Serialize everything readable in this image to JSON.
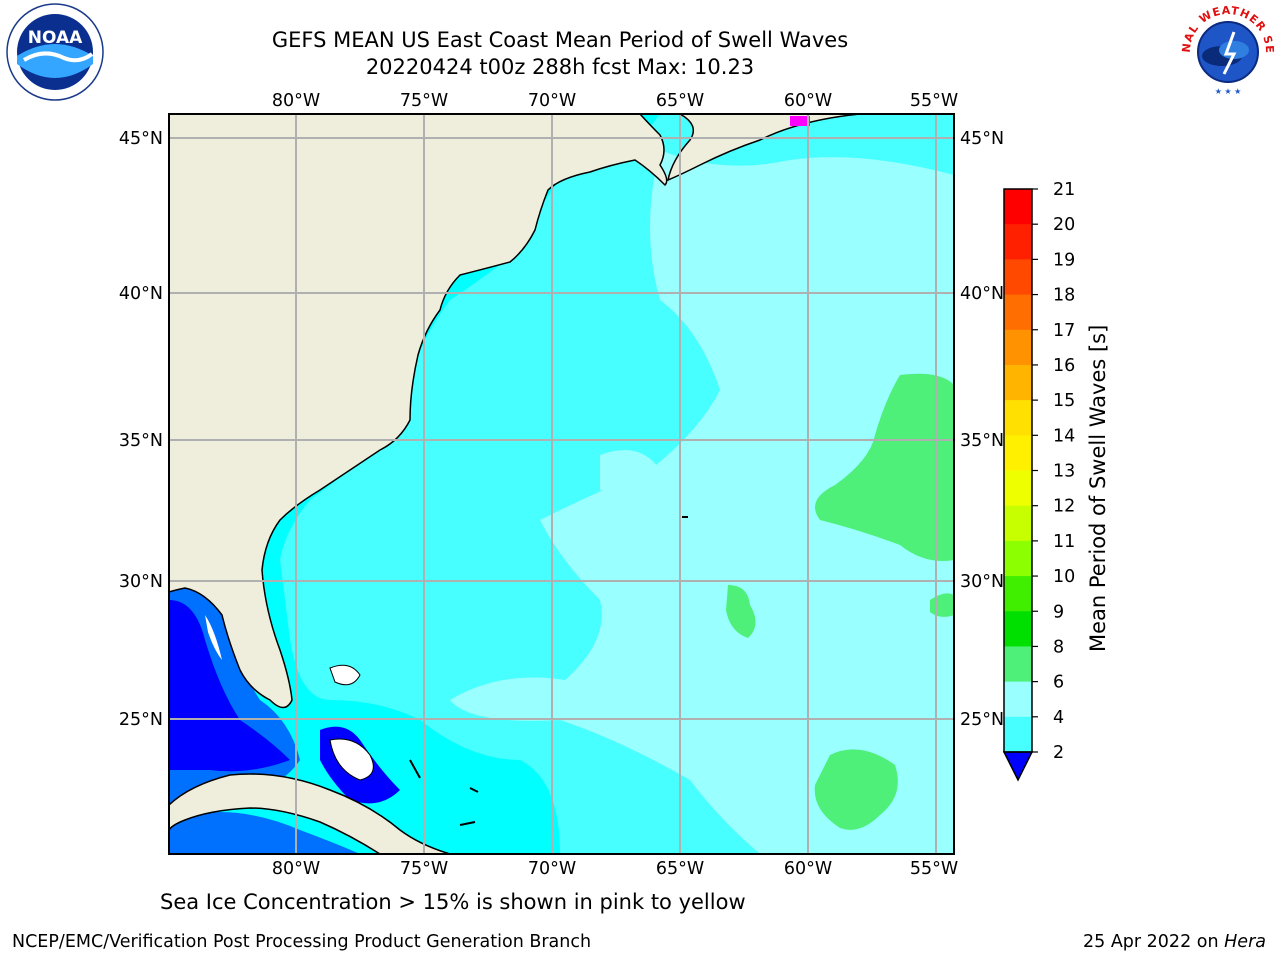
{
  "header": {
    "title_line1": "GEFS MEAN US East Coast Mean Period of Swell Waves",
    "title_line2": "20220424 t00z 288h fcst   Max: 10.23"
  },
  "map": {
    "lon_ticks": [
      "80°W",
      "75°W",
      "70°W",
      "65°W",
      "60°W",
      "55°W"
    ],
    "lat_ticks": [
      "45°N",
      "40°N",
      "35°N",
      "30°N",
      "25°N"
    ],
    "colors": {
      "land": "#efeedd",
      "ocean_c4_6": "#00ffff",
      "ocean_c6_8": "#48ffff",
      "ocean_c8_9": "#99ffff",
      "ocean_c9_10": "#4ef07a",
      "deep_c2_4": "#0070ff",
      "deep_lt2": "#0000ff",
      "ice": "#ff00ff",
      "grid": "#b0b0b0"
    }
  },
  "colorbar": {
    "label": "Mean Period of Swell Waves [s]",
    "ticks": [
      "21",
      "20",
      "19",
      "18",
      "17",
      "16",
      "15",
      "14",
      "13",
      "12",
      "11",
      "10",
      "9",
      "8",
      "6",
      "4",
      "2"
    ],
    "colors": [
      "#ff0000",
      "#ff2000",
      "#ff4800",
      "#ff6e00",
      "#ff9200",
      "#ffb400",
      "#ffe000",
      "#fff000",
      "#eeff00",
      "#c8ff00",
      "#8cff00",
      "#40ee00",
      "#00e000",
      "#4ef07a",
      "#99ffff",
      "#48ffff",
      "#00ffff",
      "#0070ff"
    ],
    "under_color": "#0000ff"
  },
  "caption": "Sea Ice Concentration > 15% is shown in pink to yellow",
  "footer": {
    "left": "NCEP/EMC/Verification Post Processing Product Generation Branch",
    "right_date": "25 Apr 2022 on ",
    "right_host": "Hera"
  },
  "logos": {
    "noaa_text": "NOAA",
    "nws_text": "NATIONAL WEATHER SERVICE"
  }
}
